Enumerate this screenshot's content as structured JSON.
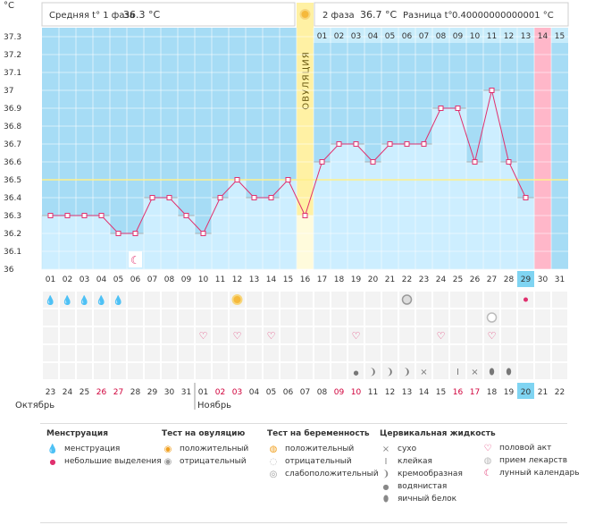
{
  "chart_data": {
    "type": "line",
    "y_unit": "°C",
    "ylim": [
      36,
      37.3
    ],
    "yticks": [
      36,
      36.1,
      36.2,
      36.3,
      36.4,
      36.5,
      36.6,
      36.7,
      36.8,
      36.9,
      37,
      37.1,
      37.2,
      37.3
    ],
    "ytick_labels": [
      "36",
      "36.1",
      "36.2",
      "36.3",
      "36.4",
      "36.5",
      "36.6",
      "36.7",
      "36.8",
      "36.9",
      "37",
      "37.1",
      "37.2",
      "37.3"
    ],
    "cycle_days": [
      "01",
      "02",
      "03",
      "04",
      "05",
      "06",
      "07",
      "08",
      "09",
      "10",
      "11",
      "12",
      "13",
      "14",
      "15",
      "16",
      "17",
      "18",
      "19",
      "20",
      "21",
      "22",
      "23",
      "24",
      "25",
      "26",
      "27",
      "28",
      "29",
      "30",
      "31"
    ],
    "temperatures": [
      36.3,
      36.3,
      36.3,
      36.3,
      36.2,
      36.2,
      36.4,
      36.4,
      36.3,
      36.2,
      36.4,
      36.5,
      36.4,
      36.4,
      36.5,
      36.3,
      36.6,
      36.7,
      36.7,
      36.6,
      36.7,
      36.7,
      36.7,
      36.9,
      36.9,
      36.6,
      37.0,
      36.6,
      36.4,
      null,
      null
    ],
    "coverline": 36.5,
    "ovulation_day": "16",
    "ovulation_label": "ОВУЛЯЦИЯ",
    "phase1_text": "Средняя t° 1 фаза",
    "phase1_value": "36.3 °C",
    "phase2_text": "2 фаза",
    "phase2_value": "36.7 °C",
    "diff_text": "Разница t°",
    "diff_value": "0.40000000000001 °C",
    "luteal_days": [
      "01",
      "02",
      "03",
      "04",
      "05",
      "06",
      "07",
      "08",
      "09",
      "10",
      "11",
      "12",
      "13",
      "14",
      "15"
    ],
    "highlight_luteal_day": "14",
    "highlight_cycle_day": "29",
    "dates": [
      "23",
      "24",
      "25",
      "26",
      "27",
      "28",
      "29",
      "30",
      "31",
      "01",
      "02",
      "03",
      "04",
      "05",
      "06",
      "07",
      "08",
      "09",
      "10",
      "11",
      "12",
      "13",
      "14",
      "15",
      "16",
      "17",
      "18",
      "19",
      "20",
      "21",
      "22"
    ],
    "red_dates": [
      "26",
      "27",
      "02",
      "03",
      "09",
      "10",
      "16",
      "17"
    ],
    "highlight_date": "20",
    "month_prev": "Октябрь",
    "month_next": "Ноябрь",
    "colors": {
      "sky": "#a6dcf5",
      "bar": "#cdeeff",
      "line": "#e0306e",
      "ovulation": "#fff1a4",
      "ovulation_light": "#fffbdc",
      "highlight_pink": "#ffb7c9",
      "highlight_blue": "#7fd4f2",
      "coverline": "#fff08a"
    },
    "markers": {
      "moon_day": "06",
      "menstruation_days": [
        "01",
        "02",
        "03",
        "04",
        "05"
      ],
      "spotting_days": [
        "29"
      ],
      "ovulation_test_positive_days": [
        "12"
      ],
      "pregnancy_test_positive_days": [
        "22"
      ],
      "pregnancy_test_negative_days": [
        "27"
      ],
      "intercourse_days": [
        "10",
        "12",
        "14",
        "19",
        "24",
        "27"
      ],
      "cervical_fluid": [
        {
          "day": "19",
          "kind": "watery"
        },
        {
          "day": "20",
          "kind": "creamy"
        },
        {
          "day": "21",
          "kind": "creamy"
        },
        {
          "day": "22",
          "kind": "creamy"
        },
        {
          "day": "23",
          "kind": "dry"
        },
        {
          "day": "25",
          "kind": "sticky"
        },
        {
          "day": "26",
          "kind": "dry"
        },
        {
          "day": "27",
          "kind": "egg_white"
        },
        {
          "day": "28",
          "kind": "egg_white"
        }
      ]
    }
  },
  "legend": {
    "menstruation": {
      "title": "Менструация",
      "items": [
        "менструация",
        "небольшие выделения"
      ]
    },
    "ovulation_test": {
      "title": "Тест на овуляцию",
      "items": [
        "положительный",
        "отрицательный"
      ]
    },
    "pregnancy_test": {
      "title": "Тест на беременность",
      "items": [
        "положительный",
        "отрицательный",
        "слабоположительный"
      ]
    },
    "cervical_fluid": {
      "title": "Цервикальная жидкость",
      "items": [
        "сухо",
        "клейкая",
        "кремообразная",
        "водянистая",
        "яичный белок"
      ]
    },
    "other": {
      "items": [
        "половой акт",
        "прием лекарств",
        "лунный календарь"
      ]
    }
  }
}
